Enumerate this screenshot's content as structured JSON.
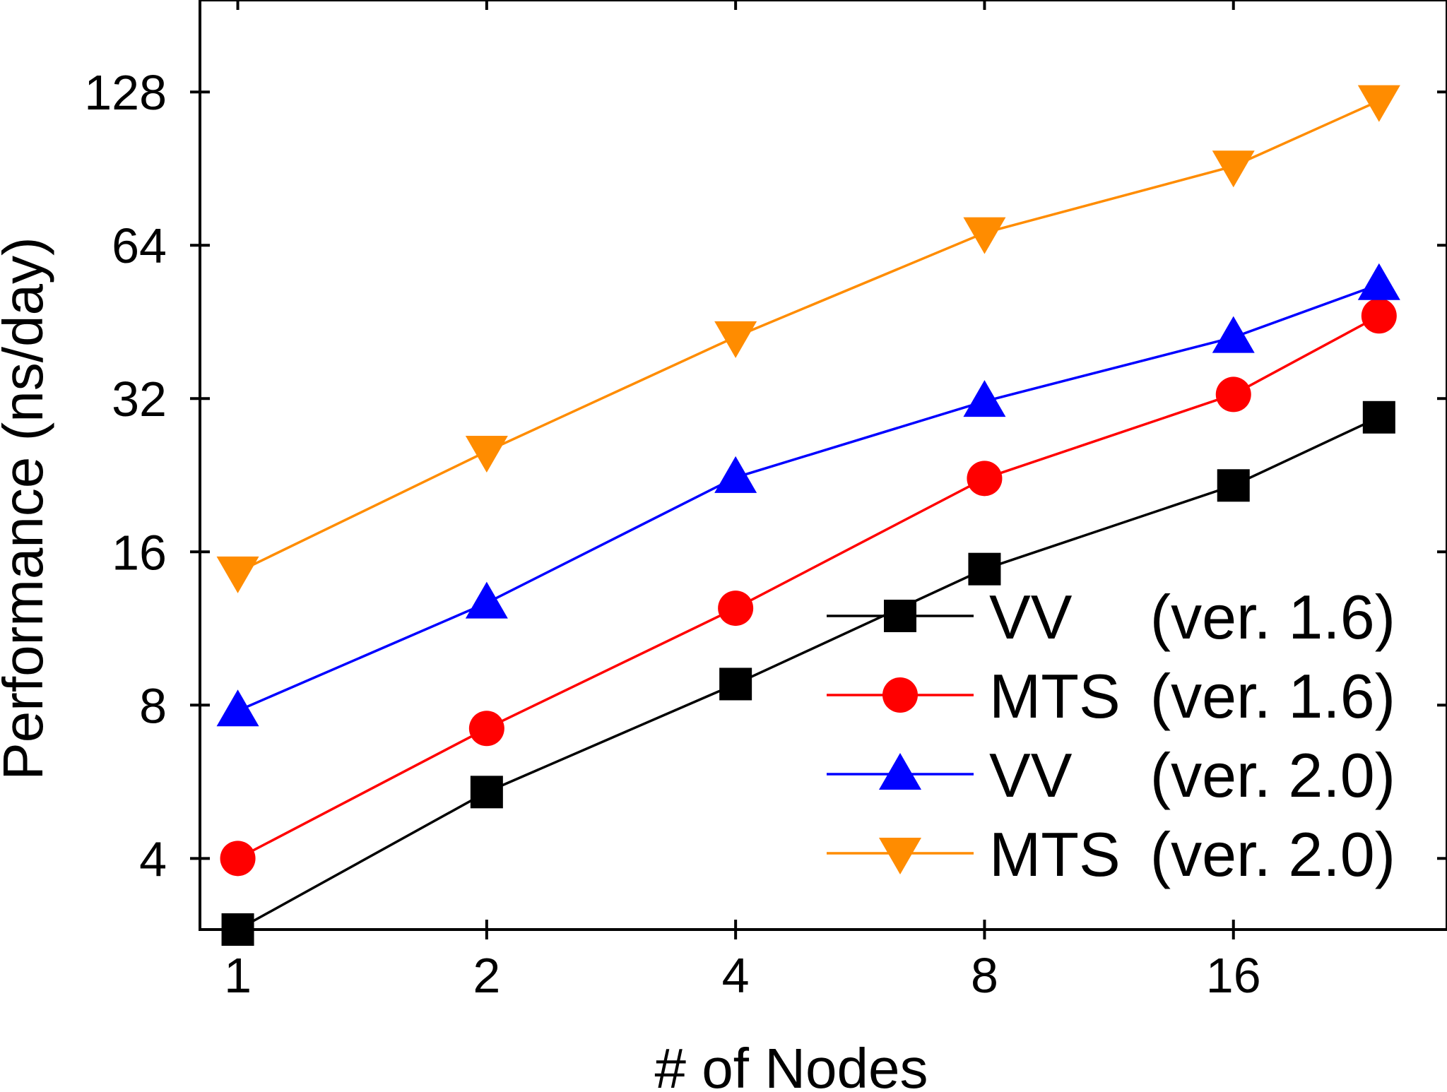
{
  "chart_data": {
    "type": "line",
    "xlabel": "# of Nodes",
    "ylabel": "Performance (ns/day)",
    "x_scale": "log2",
    "y_scale": "log2",
    "x_ticks": [
      1,
      2,
      4,
      8,
      16
    ],
    "x_tick_labels": [
      "1",
      "2",
      "4",
      "8",
      "16"
    ],
    "y_ticks": [
      4,
      8,
      16,
      32,
      64,
      128
    ],
    "y_tick_labels": [
      "4",
      "8",
      "16",
      "32",
      "64",
      "128"
    ],
    "xlim": [
      0.9,
      29
    ],
    "ylim": [
      2.9,
      194
    ],
    "x": [
      1,
      2,
      4,
      8,
      16,
      24
    ],
    "series": [
      {
        "name": "VV",
        "version": "(ver. 1.6)",
        "color": "#000000",
        "marker": "square",
        "values": [
          2.9,
          5.4,
          8.8,
          14.8,
          21.6,
          29.4
        ]
      },
      {
        "name": "MTS",
        "version": "(ver. 1.6)",
        "color": "#ff0000",
        "marker": "circle",
        "values": [
          4.0,
          7.2,
          12.4,
          22.3,
          32.6,
          46.5
        ]
      },
      {
        "name": "VV",
        "version": "(ver. 2.0)",
        "color": "#0000ff",
        "marker": "triangle-up",
        "values": [
          7.8,
          12.7,
          22.4,
          31.6,
          42.2,
          53.6
        ]
      },
      {
        "name": "MTS",
        "version": "(ver. 2.0)",
        "color": "#ff8c00",
        "marker": "triangle-down",
        "values": [
          14.6,
          25.2,
          42.3,
          67.7,
          91.5,
          123.0
        ]
      }
    ],
    "legend_position": "bottom-right",
    "grid": false
  }
}
